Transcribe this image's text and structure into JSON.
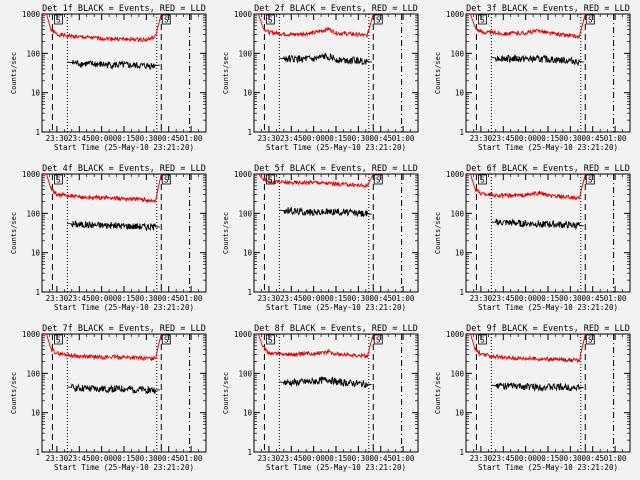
{
  "figure": {
    "background": "#f2f2f2",
    "event_color": "#000000",
    "lld_color": "#e00000"
  },
  "chart_data": [
    {
      "type": "line",
      "title": "Det 1f BLACK = Events, RED = LLD",
      "xlabel": "Start Time (25-May-10 23:21:20)",
      "ylabel": "Counts/sec",
      "y_scale": "log",
      "ylim": [
        1,
        1000
      ],
      "x_ticks": [
        "23:30",
        "23:45",
        "00:00",
        "00:15",
        "00:30",
        "00:45",
        "01:00"
      ],
      "annotations": [
        "S",
        "S"
      ],
      "series": [
        {
          "color": "#e00000",
          "x": [
            "23:23",
            "23:26",
            "23:30",
            "23:45",
            "00:00",
            "00:15",
            "00:30",
            "00:36",
            "00:40"
          ],
          "y": [
            1000,
            400,
            300,
            260,
            240,
            230,
            220,
            260,
            1000
          ]
        },
        {
          "color": "#000000",
          "x": [
            "23:37",
            "23:45",
            "00:00",
            "00:15",
            "00:30",
            "00:39"
          ],
          "y": [
            60,
            55,
            52,
            50,
            48,
            50
          ]
        }
      ]
    },
    {
      "type": "line",
      "title": "Det 2f BLACK = Events, RED = LLD",
      "xlabel": "Start Time (25-May-10 23:21:20)",
      "ylabel": "Counts/sec",
      "y_scale": "log",
      "ylim": [
        1,
        1000
      ],
      "x_ticks": [
        "23:30",
        "23:45",
        "00:00",
        "00:15",
        "00:30",
        "00:45",
        "01:00"
      ],
      "annotations": [
        "S",
        "S"
      ],
      "series": [
        {
          "color": "#e00000",
          "x": [
            "23:23",
            "23:26",
            "23:30",
            "23:45",
            "00:00",
            "00:10",
            "00:15",
            "00:30",
            "00:36",
            "00:40"
          ],
          "y": [
            1000,
            450,
            340,
            300,
            330,
            420,
            330,
            300,
            280,
            1000
          ]
        },
        {
          "color": "#000000",
          "x": [
            "23:37",
            "23:45",
            "00:00",
            "00:10",
            "00:15",
            "00:30",
            "00:39"
          ],
          "y": [
            75,
            72,
            70,
            85,
            70,
            65,
            60
          ]
        }
      ]
    },
    {
      "type": "line",
      "title": "Det 3f BLACK = Events, RED = LLD",
      "xlabel": "Start Time (25-May-10 23:21:20)",
      "ylabel": "Counts/sec",
      "y_scale": "log",
      "ylim": [
        1,
        1000
      ],
      "x_ticks": [
        "23:30",
        "23:45",
        "00:00",
        "00:15",
        "00:30",
        "00:45",
        "01:00"
      ],
      "annotations": [
        "S",
        "S"
      ],
      "series": [
        {
          "color": "#e00000",
          "x": [
            "23:23",
            "23:26",
            "23:30",
            "23:45",
            "00:00",
            "00:10",
            "00:15",
            "00:30",
            "00:36",
            "00:40"
          ],
          "y": [
            1000,
            460,
            350,
            320,
            330,
            380,
            330,
            280,
            260,
            1000
          ]
        },
        {
          "color": "#000000",
          "x": [
            "23:37",
            "23:45",
            "00:00",
            "00:15",
            "00:30",
            "00:39"
          ],
          "y": [
            78,
            75,
            72,
            70,
            65,
            60
          ]
        }
      ]
    },
    {
      "type": "line",
      "title": "Det 4f BLACK = Events, RED = LLD",
      "xlabel": "Start Time (25-May-10 23:21:20)",
      "ylabel": "Counts/sec",
      "y_scale": "log",
      "ylim": [
        1,
        1000
      ],
      "x_ticks": [
        "23:30",
        "23:45",
        "00:00",
        "00:15",
        "00:30",
        "00:45",
        "01:00"
      ],
      "annotations": [
        "S",
        "S"
      ],
      "series": [
        {
          "color": "#e00000",
          "x": [
            "23:23",
            "23:26",
            "23:30",
            "23:45",
            "00:00",
            "00:15",
            "00:30",
            "00:36",
            "00:40"
          ],
          "y": [
            1000,
            420,
            300,
            260,
            250,
            240,
            220,
            200,
            1000
          ]
        },
        {
          "color": "#000000",
          "x": [
            "23:37",
            "23:45",
            "00:00",
            "00:15",
            "00:30",
            "00:39"
          ],
          "y": [
            55,
            52,
            50,
            48,
            46,
            45
          ]
        }
      ]
    },
    {
      "type": "line",
      "title": "Det 5f BLACK = Events, RED = LLD",
      "xlabel": "Start Time (25-May-10 23:21:20)",
      "ylabel": "Counts/sec",
      "y_scale": "log",
      "ylim": [
        1,
        1000
      ],
      "x_ticks": [
        "23:30",
        "23:45",
        "00:00",
        "00:15",
        "00:30",
        "00:45",
        "01:00"
      ],
      "annotations": [
        "S",
        "S"
      ],
      "series": [
        {
          "color": "#e00000",
          "x": [
            "23:23",
            "23:26",
            "23:30",
            "23:45",
            "00:00",
            "00:15",
            "00:30",
            "00:36",
            "00:40"
          ],
          "y": [
            1000,
            750,
            650,
            600,
            620,
            560,
            520,
            500,
            1000
          ]
        },
        {
          "color": "#000000",
          "x": [
            "23:37",
            "23:45",
            "00:00",
            "00:15",
            "00:30",
            "00:39"
          ],
          "y": [
            120,
            115,
            105,
            110,
            100,
            95
          ]
        }
      ]
    },
    {
      "type": "line",
      "title": "Det 6f BLACK = Events, RED = LLD",
      "xlabel": "Start Time (25-May-10 23:21:20)",
      "ylabel": "Counts/sec",
      "y_scale": "log",
      "ylim": [
        1,
        1000
      ],
      "x_ticks": [
        "23:30",
        "23:45",
        "00:00",
        "00:15",
        "00:30",
        "00:45",
        "01:00"
      ],
      "annotations": [
        "S",
        "S"
      ],
      "series": [
        {
          "color": "#e00000",
          "x": [
            "23:23",
            "23:26",
            "23:30",
            "23:45",
            "00:00",
            "00:10",
            "00:15",
            "00:30",
            "00:36",
            "00:40"
          ],
          "y": [
            1000,
            420,
            320,
            280,
            290,
            330,
            280,
            250,
            240,
            1000
          ]
        },
        {
          "color": "#000000",
          "x": [
            "23:37",
            "23:45",
            "00:00",
            "00:15",
            "00:30",
            "00:39"
          ],
          "y": [
            60,
            58,
            55,
            53,
            50,
            48
          ]
        }
      ]
    },
    {
      "type": "line",
      "title": "Det 7f BLACK = Events, RED = LLD",
      "xlabel": "Start Time (25-May-10 23:21:20)",
      "ylabel": "Counts/sec",
      "y_scale": "log",
      "ylim": [
        1,
        1000
      ],
      "x_ticks": [
        "23:30",
        "23:45",
        "00:00",
        "00:15",
        "00:30",
        "00:45",
        "01:00"
      ],
      "annotations": [
        "S",
        "S"
      ],
      "series": [
        {
          "color": "#e00000",
          "x": [
            "23:23",
            "23:26",
            "23:30",
            "23:45",
            "00:00",
            "00:15",
            "00:30",
            "00:36",
            "00:40"
          ],
          "y": [
            1000,
            420,
            320,
            270,
            260,
            260,
            240,
            240,
            1000
          ]
        },
        {
          "color": "#000000",
          "x": [
            "23:37",
            "23:45",
            "00:00",
            "00:15",
            "00:30",
            "00:39"
          ],
          "y": [
            45,
            42,
            40,
            40,
            38,
            38
          ]
        }
      ]
    },
    {
      "type": "line",
      "title": "Det 8f BLACK = Events, RED = LLD",
      "xlabel": "Start Time (25-May-10 23:21:20)",
      "ylabel": "Counts/sec",
      "y_scale": "log",
      "ylim": [
        1,
        1000
      ],
      "x_ticks": [
        "23:30",
        "23:45",
        "00:00",
        "00:15",
        "00:30",
        "00:45",
        "01:00"
      ],
      "annotations": [
        "S",
        "S"
      ],
      "series": [
        {
          "color": "#e00000",
          "x": [
            "23:23",
            "23:26",
            "23:30",
            "23:45",
            "00:00",
            "00:10",
            "00:15",
            "00:30",
            "00:36",
            "00:40"
          ],
          "y": [
            1000,
            450,
            330,
            300,
            320,
            360,
            310,
            290,
            270,
            1000
          ]
        },
        {
          "color": "#000000",
          "x": [
            "23:37",
            "23:45",
            "00:00",
            "00:10",
            "00:15",
            "00:30",
            "00:39"
          ],
          "y": [
            60,
            58,
            62,
            70,
            60,
            55,
            52
          ]
        }
      ]
    },
    {
      "type": "line",
      "title": "Det 9f BLACK = Events, RED = LLD",
      "xlabel": "Start Time (25-May-10 23:21:20)",
      "ylabel": "Counts/sec",
      "y_scale": "log",
      "ylim": [
        1,
        1000
      ],
      "x_ticks": [
        "23:30",
        "23:45",
        "00:00",
        "00:15",
        "00:30",
        "00:45",
        "01:00"
      ],
      "annotations": [
        "S",
        "S"
      ],
      "series": [
        {
          "color": "#e00000",
          "x": [
            "23:23",
            "23:26",
            "23:30",
            "23:45",
            "00:00",
            "00:15",
            "00:30",
            "00:36",
            "00:40"
          ],
          "y": [
            1000,
            420,
            300,
            250,
            240,
            230,
            220,
            210,
            1000
          ]
        },
        {
          "color": "#000000",
          "x": [
            "23:37",
            "23:45",
            "00:00",
            "00:15",
            "00:30",
            "00:39"
          ],
          "y": [
            50,
            48,
            46,
            45,
            44,
            44
          ]
        }
      ]
    }
  ]
}
